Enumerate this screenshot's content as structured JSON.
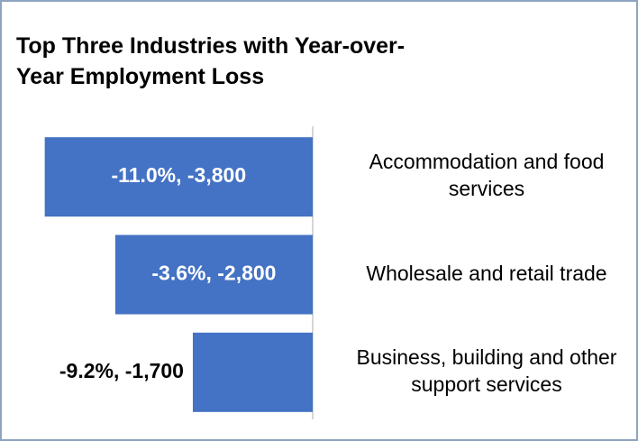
{
  "chart_data": {
    "type": "barh",
    "title": "Top Three Industries with Year-over-\nYear Employment Loss",
    "categories": [
      "Accommodation and food services",
      "Wholesale and retail trade",
      "Business, building and other support services"
    ],
    "values": [
      -3800,
      -2800,
      -1700
    ],
    "value_labels": [
      "-11.0%, -3,800",
      "-3.6%, -2,800",
      "-9.2%, -1,700"
    ],
    "color": "#4472c4",
    "xlim": [
      -4000,
      0
    ]
  }
}
